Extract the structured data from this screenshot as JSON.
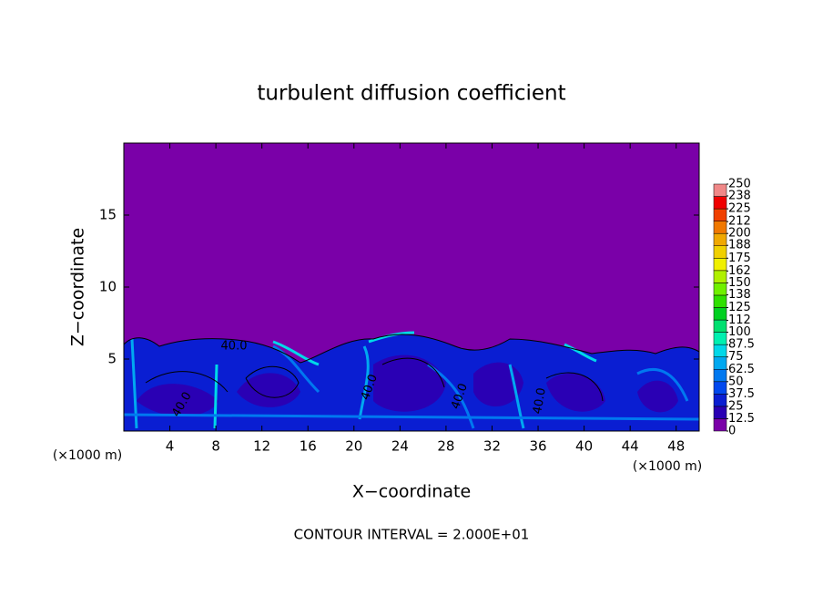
{
  "chart_data": {
    "type": "contour",
    "title": "turbulent diffusion coefficient",
    "xlabel": "X−coordinate",
    "ylabel": "Z−coordinate",
    "x_unit_labels": [
      "(×1000 m)",
      "(×1000 m)"
    ],
    "xlim": [
      0,
      50
    ],
    "ylim": [
      0,
      20
    ],
    "xticks": [
      4,
      8,
      12,
      16,
      20,
      24,
      28,
      32,
      36,
      40,
      44,
      48
    ],
    "yticks": [
      5,
      10,
      15
    ],
    "contour_labels": [
      "40.0",
      "40.0",
      "40.0",
      "40.0",
      "40.0"
    ],
    "footer": "CONTOUR INTERVAL = 2.000E+01",
    "colorbar": {
      "levels": [
        0,
        12.5,
        25,
        37.5,
        50,
        62.5,
        75,
        87.5,
        100,
        112,
        125,
        138,
        150,
        162,
        175,
        188,
        200,
        212,
        225,
        238,
        250
      ],
      "colors": [
        "#7a00a8",
        "#2a00b4",
        "#0a1ed2",
        "#0048ee",
        "#0078f0",
        "#00a8f0",
        "#00d8e8",
        "#00f0b0",
        "#00e070",
        "#00d020",
        "#30e000",
        "#70f000",
        "#b0f000",
        "#f0f000",
        "#f0d000",
        "#f0a800",
        "#f07800",
        "#f04000",
        "#f00000",
        "#f08888"
      ]
    }
  }
}
